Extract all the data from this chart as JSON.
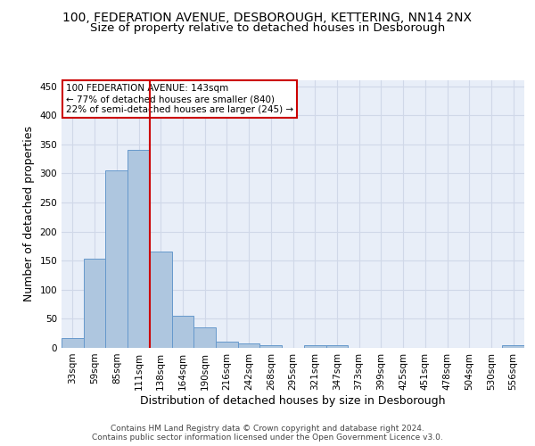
{
  "title": "100, FEDERATION AVENUE, DESBOROUGH, KETTERING, NN14 2NX",
  "subtitle": "Size of property relative to detached houses in Desborough",
  "xlabel": "Distribution of detached houses by size in Desborough",
  "ylabel": "Number of detached properties",
  "categories": [
    "33sqm",
    "59sqm",
    "85sqm",
    "111sqm",
    "138sqm",
    "164sqm",
    "190sqm",
    "216sqm",
    "242sqm",
    "268sqm",
    "295sqm",
    "321sqm",
    "347sqm",
    "373sqm",
    "399sqm",
    "425sqm",
    "451sqm",
    "478sqm",
    "504sqm",
    "530sqm",
    "556sqm"
  ],
  "values": [
    17,
    153,
    305,
    340,
    165,
    55,
    35,
    10,
    7,
    5,
    0,
    5,
    5,
    0,
    0,
    0,
    0,
    0,
    0,
    0,
    5
  ],
  "bar_color": "#aec6df",
  "bar_edge_color": "#6699cc",
  "annotation_text_line1": "100 FEDERATION AVENUE: 143sqm",
  "annotation_text_line2": "← 77% of detached houses are smaller (840)",
  "annotation_text_line3": "22% of semi-detached houses are larger (245) →",
  "annotation_box_color": "#ffffff",
  "annotation_box_edge_color": "#cc0000",
  "vline_color": "#cc0000",
  "vline_x": 3.5,
  "ylim": [
    0,
    460
  ],
  "yticks": [
    0,
    50,
    100,
    150,
    200,
    250,
    300,
    350,
    400,
    450
  ],
  "grid_color": "#d0d8e8",
  "bg_color": "#e8eef8",
  "footer1": "Contains HM Land Registry data © Crown copyright and database right 2024.",
  "footer2": "Contains public sector information licensed under the Open Government Licence v3.0.",
  "title_fontsize": 10,
  "subtitle_fontsize": 9.5,
  "xlabel_fontsize": 9,
  "ylabel_fontsize": 9,
  "tick_fontsize": 7.5,
  "annotation_fontsize": 7.5,
  "footer_fontsize": 6.5
}
